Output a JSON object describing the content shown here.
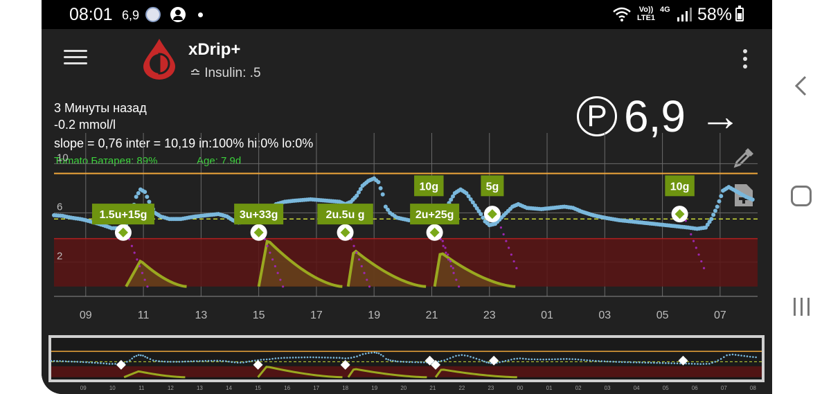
{
  "status_bar": {
    "time": "08:01",
    "bg_small": "6,9",
    "network_volte": "Vo)) LTE1",
    "network_type": "4G",
    "battery": "58%"
  },
  "toolbar": {
    "title": "xDrip+",
    "subtitle": "≏ Insulin: .5",
    "logo_color": "#c62828"
  },
  "status_info": {
    "last_reading": "3 Минуты назад",
    "delta": "-0.2 mmol/l",
    "calibration": "slope = 0,76 inter = 10,19 in:100% hi:0% lo:0%",
    "transmitter_battery": "Tomato Батарея: 89%",
    "sensor_age": "Age: 7.9d"
  },
  "current_bg": {
    "pump_badge": "P",
    "value": "6,9",
    "trend_arrow": "→"
  },
  "icons": {
    "eyedrop": "eyedropper-icon",
    "note": "note-add-icon",
    "menu": "hamburger-menu-icon",
    "overflow": "overflow-menu-icon"
  },
  "colors": {
    "bg_line": "#7ab8dc",
    "high_line": "#f2a93b",
    "target_line": "#cddc39",
    "low_zone": "#5a1414",
    "treatment_label": "#6e9410",
    "insulin_curve": "#9aa820",
    "iob_area": "#6b4b1c",
    "predict_dots": "#9c27b0"
  },
  "chart_data": {
    "type": "line",
    "y_ticks": [
      "10",
      "6",
      "2"
    ],
    "x_ticks": [
      "09",
      "11",
      "13",
      "15",
      "17",
      "19",
      "21",
      "23",
      "01",
      "03",
      "05",
      "07"
    ],
    "x_start_hour": 7.9,
    "x_end_hour": 32.3,
    "ylim": [
      -0.8,
      12.5
    ],
    "high_mark": 9.2,
    "low_mark": 3.9,
    "target_mark": 5.5,
    "bg_series": [
      [
        7.9,
        5.8
      ],
      [
        8.2,
        5.75
      ],
      [
        8.5,
        5.6
      ],
      [
        8.8,
        5.5
      ],
      [
        9.0,
        5.4
      ],
      [
        9.3,
        5.2
      ],
      [
        9.6,
        5.0
      ],
      [
        9.9,
        4.75
      ],
      [
        10.2,
        4.75
      ],
      [
        10.4,
        5.0
      ],
      [
        10.6,
        6.0
      ],
      [
        10.75,
        7.3
      ],
      [
        10.9,
        7.9
      ],
      [
        11.05,
        7.7
      ],
      [
        11.2,
        6.9
      ],
      [
        11.4,
        6.0
      ],
      [
        11.6,
        5.7
      ],
      [
        11.9,
        5.5
      ],
      [
        12.3,
        5.5
      ],
      [
        12.8,
        5.7
      ],
      [
        13.2,
        5.8
      ],
      [
        13.6,
        5.9
      ],
      [
        13.9,
        5.7
      ],
      [
        14.1,
        5.4
      ],
      [
        14.3,
        5.2
      ],
      [
        14.5,
        5.25
      ],
      [
        14.8,
        5.8
      ],
      [
        15.1,
        6.2
      ],
      [
        15.4,
        6.4
      ],
      [
        15.6,
        6.7
      ],
      [
        15.9,
        6.9
      ],
      [
        16.3,
        7.0
      ],
      [
        16.8,
        7.1
      ],
      [
        17.3,
        7.0
      ],
      [
        17.8,
        6.9
      ],
      [
        18.0,
        6.7
      ],
      [
        18.2,
        6.9
      ],
      [
        18.4,
        7.4
      ],
      [
        18.6,
        8.2
      ],
      [
        18.8,
        8.6
      ],
      [
        19.0,
        8.8
      ],
      [
        19.15,
        8.5
      ],
      [
        19.3,
        7.5
      ],
      [
        19.4,
        6.5
      ],
      [
        19.55,
        6.0
      ],
      [
        19.8,
        5.6
      ],
      [
        20.2,
        5.4
      ],
      [
        20.6,
        5.3
      ],
      [
        20.9,
        5.25
      ],
      [
        21.1,
        5.4
      ],
      [
        21.4,
        6.0
      ],
      [
        21.6,
        6.8
      ],
      [
        21.8,
        7.6
      ],
      [
        22.0,
        7.9
      ],
      [
        22.2,
        7.6
      ],
      [
        22.5,
        6.6
      ],
      [
        22.7,
        5.9
      ],
      [
        22.85,
        5.3
      ],
      [
        23.0,
        5.0
      ],
      [
        23.2,
        5.1
      ],
      [
        23.5,
        5.8
      ],
      [
        23.8,
        6.5
      ],
      [
        24.0,
        6.7
      ],
      [
        24.3,
        6.4
      ],
      [
        24.8,
        6.3
      ],
      [
        25.2,
        6.4
      ],
      [
        25.6,
        6.5
      ],
      [
        25.9,
        6.4
      ],
      [
        26.2,
        6.1
      ],
      [
        26.6,
        5.8
      ],
      [
        27.0,
        5.6
      ],
      [
        27.5,
        5.4
      ],
      [
        27.9,
        5.3
      ],
      [
        28.3,
        5.2
      ],
      [
        28.7,
        5.1
      ],
      [
        29.1,
        5.0
      ],
      [
        29.5,
        4.9
      ],
      [
        29.9,
        4.8
      ],
      [
        30.2,
        4.7
      ],
      [
        30.5,
        4.8
      ],
      [
        30.7,
        5.5
      ],
      [
        30.9,
        6.5
      ],
      [
        31.1,
        7.8
      ],
      [
        31.3,
        8.1
      ],
      [
        31.6,
        7.7
      ],
      [
        31.9,
        7.3
      ],
      [
        32.2,
        7.0
      ]
    ],
    "treatments": [
      {
        "label": "1.5u+15g",
        "hour": 10.3,
        "bg": 5.9,
        "marker_bg": 4.4
      },
      {
        "label": "3u+33g",
        "hour": 15.0,
        "bg": 5.9,
        "marker_bg": 4.4
      },
      {
        "label": "2u.5u g",
        "hour": 18.0,
        "bg": 5.9,
        "marker_bg": 4.4
      },
      {
        "label": "10g",
        "hour": 20.9,
        "bg": 8.2,
        "marker_bg": 5.9
      },
      {
        "label": "2u+25g",
        "hour": 21.1,
        "bg": 5.9,
        "marker_bg": 4.4
      },
      {
        "label": "5g",
        "hour": 23.1,
        "bg": 8.2,
        "marker_bg": 5.9
      },
      {
        "label": "10g",
        "hour": 29.6,
        "bg": 8.2,
        "marker_bg": 5.9
      }
    ],
    "insulin_curves": [
      {
        "start": 10.4,
        "peak": 10.9,
        "end": 12.5,
        "height": 2.1
      },
      {
        "start": 15.0,
        "peak": 15.3,
        "end": 17.9,
        "height": 3.8
      },
      {
        "start": 18.1,
        "peak": 18.3,
        "end": 20.8,
        "height": 3.0
      },
      {
        "start": 21.1,
        "peak": 21.3,
        "end": 23.9,
        "height": 2.8
      }
    ],
    "mini_x_ticks": [
      "09",
      "10",
      "11",
      "12",
      "13",
      "14",
      "15",
      "16",
      "17",
      "18",
      "19",
      "20",
      "21",
      "22",
      "23",
      "00",
      "01",
      "02",
      "03",
      "04",
      "05",
      "06",
      "07",
      "08"
    ]
  }
}
